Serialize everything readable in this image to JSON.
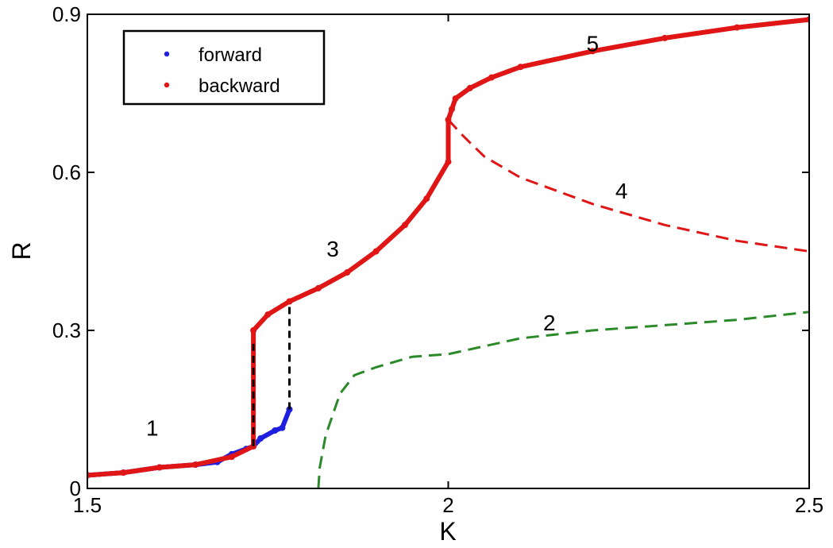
{
  "chart_data": {
    "type": "scatter",
    "xlabel": "K",
    "ylabel": "R",
    "xlim": [
      1.5,
      2.5
    ],
    "ylim": [
      0,
      0.9
    ],
    "x_ticks": [
      1.5,
      2,
      2.5
    ],
    "x_tick_labels": [
      "1.5",
      "2",
      "2.5"
    ],
    "y_ticks": [
      0,
      0.3,
      0.6,
      0.9
    ],
    "y_tick_labels": [
      "0",
      "0.3",
      "0.6",
      "0.9"
    ],
    "grid": false,
    "legend_position": "top-left",
    "legend": [
      {
        "label": "forward",
        "color": "#1f1fe0",
        "marker": "dot"
      },
      {
        "label": "backward",
        "color": "#e01515",
        "marker": "dot"
      }
    ],
    "series": [
      {
        "name": "forward",
        "style": "scatter",
        "color": "#1f1fe0",
        "x": [
          1.5,
          1.55,
          1.6,
          1.65,
          1.68,
          1.7,
          1.72,
          1.73,
          1.74,
          1.76,
          1.77,
          1.78
        ],
        "y": [
          0.025,
          0.03,
          0.04,
          0.045,
          0.05,
          0.065,
          0.075,
          0.08,
          0.095,
          0.11,
          0.115,
          0.15
        ]
      },
      {
        "name": "backward",
        "style": "scatter",
        "color": "#e01515",
        "x": [
          1.5,
          1.55,
          1.6,
          1.65,
          1.7,
          1.73,
          1.73,
          1.75,
          1.78,
          1.82,
          1.86,
          1.9,
          1.94,
          1.97,
          2.0,
          2.0,
          2.005,
          2.01,
          2.03,
          2.06,
          2.1,
          2.2,
          2.3,
          2.4,
          2.5
        ],
        "y": [
          0.025,
          0.03,
          0.04,
          0.045,
          0.06,
          0.08,
          0.3,
          0.33,
          0.355,
          0.38,
          0.41,
          0.45,
          0.5,
          0.55,
          0.62,
          0.7,
          0.72,
          0.74,
          0.76,
          0.78,
          0.8,
          0.83,
          0.855,
          0.875,
          0.89
        ]
      },
      {
        "name": "",
        "style": "dashed",
        "color": "#e01515",
        "x": [
          2.0,
          2.02,
          2.05,
          2.1,
          2.2,
          2.3,
          2.4,
          2.5
        ],
        "y": [
          0.7,
          0.67,
          0.63,
          0.59,
          0.54,
          0.5,
          0.47,
          0.45
        ]
      },
      {
        "name": "",
        "style": "dashed",
        "color": "#2a8a2a",
        "x": [
          1.82,
          1.822,
          1.83,
          1.85,
          1.87,
          1.9,
          1.95,
          2.0,
          2.05,
          2.1,
          2.2,
          2.3,
          2.4,
          2.5
        ],
        "y": [
          0.0,
          0.04,
          0.1,
          0.18,
          0.215,
          0.23,
          0.25,
          0.255,
          0.27,
          0.285,
          0.3,
          0.31,
          0.32,
          0.335
        ]
      },
      {
        "name": "",
        "style": "dashed",
        "color": "#000000",
        "x": [
          1.73,
          1.73
        ],
        "y": [
          0.08,
          0.28
        ]
      },
      {
        "name": "",
        "style": "dashed",
        "color": "#000000",
        "x": [
          1.78,
          1.78
        ],
        "y": [
          0.15,
          0.345
        ]
      }
    ],
    "annotations": [
      {
        "text": "1",
        "x": 1.59,
        "y": 0.1
      },
      {
        "text": "2",
        "x": 2.14,
        "y": 0.3
      },
      {
        "text": "3",
        "x": 1.84,
        "y": 0.44
      },
      {
        "text": "4",
        "x": 2.24,
        "y": 0.55
      },
      {
        "text": "5",
        "x": 2.2,
        "y": 0.83
      }
    ]
  }
}
